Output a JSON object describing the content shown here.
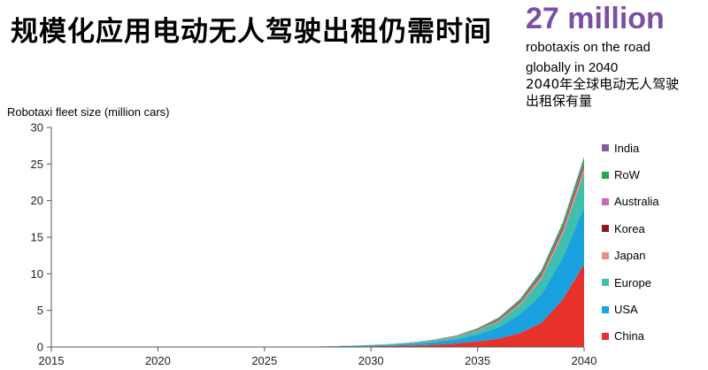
{
  "headline": "规模化应用电动无人驾驶出租仍需时间",
  "callout": {
    "number": "27 million",
    "line1": "robotaxis on the road",
    "line2": "globally in 2040",
    "line3": "2040年全球电动无人驾驶",
    "line4": "出租保有量",
    "color": "#7b4fa6"
  },
  "chart_data": {
    "type": "area",
    "stacked": true,
    "ylabel": "Robotaxi fleet size (million cars)",
    "xlabel": "",
    "ylim": [
      0,
      30
    ],
    "xlim": [
      2015,
      2040
    ],
    "x_ticks": [
      "2015",
      "2020",
      "2025",
      "2030",
      "2035",
      "2040"
    ],
    "y_ticks": [
      "30",
      "25",
      "20",
      "15",
      "10",
      "5",
      "0"
    ],
    "grid": false,
    "legend_position": "right",
    "x": [
      2015,
      2020,
      2025,
      2026,
      2027,
      2028,
      2029,
      2030,
      2031,
      2032,
      2033,
      2034,
      2035,
      2036,
      2037,
      2038,
      2039,
      2040
    ],
    "series": [
      {
        "name": "China",
        "color": "#e8312a",
        "values": [
          0,
          0,
          0,
          0.01,
          0.02,
          0.04,
          0.06,
          0.1,
          0.15,
          0.22,
          0.32,
          0.48,
          0.75,
          1.15,
          1.9,
          3.3,
          6.5,
          11.3
        ]
      },
      {
        "name": "USA",
        "color": "#1aa1e0",
        "values": [
          0,
          0,
          0,
          0.01,
          0.02,
          0.04,
          0.07,
          0.1,
          0.15,
          0.23,
          0.36,
          0.55,
          0.95,
          1.55,
          2.6,
          3.9,
          5.7,
          7.8
        ]
      },
      {
        "name": "Europe",
        "color": "#3fbfad",
        "values": [
          0,
          0,
          0,
          0.01,
          0.01,
          0.02,
          0.03,
          0.05,
          0.08,
          0.12,
          0.19,
          0.3,
          0.5,
          0.8,
          1.3,
          2.1,
          3.2,
          4.7
        ]
      },
      {
        "name": "Japan",
        "color": "#f08a8a",
        "values": [
          0,
          0,
          0,
          0,
          0,
          0,
          0.01,
          0.01,
          0.02,
          0.03,
          0.05,
          0.07,
          0.11,
          0.17,
          0.25,
          0.4,
          0.55,
          0.75
        ]
      },
      {
        "name": "Korea",
        "color": "#8b1a1a",
        "values": [
          0,
          0,
          0,
          0,
          0,
          0,
          0,
          0.01,
          0.01,
          0.02,
          0.03,
          0.04,
          0.06,
          0.09,
          0.13,
          0.2,
          0.27,
          0.35
        ]
      },
      {
        "name": "Australia",
        "color": "#c86bb8",
        "values": [
          0,
          0,
          0,
          0,
          0,
          0,
          0,
          0,
          0.01,
          0.01,
          0.02,
          0.03,
          0.04,
          0.06,
          0.08,
          0.11,
          0.15,
          0.2
        ]
      },
      {
        "name": "RoW",
        "color": "#1fa854",
        "values": [
          0,
          0,
          0,
          0,
          0,
          0,
          0.01,
          0.01,
          0.02,
          0.03,
          0.05,
          0.08,
          0.12,
          0.18,
          0.26,
          0.4,
          0.55,
          0.75
        ]
      },
      {
        "name": "India",
        "color": "#8a5aa0",
        "values": [
          0,
          0,
          0,
          0,
          0,
          0,
          0,
          0,
          0,
          0.01,
          0.01,
          0.02,
          0.03,
          0.04,
          0.06,
          0.08,
          0.1,
          0.15
        ]
      }
    ],
    "legend_order": [
      "India",
      "RoW",
      "Australia",
      "Korea",
      "Japan",
      "Europe",
      "USA",
      "China"
    ]
  }
}
